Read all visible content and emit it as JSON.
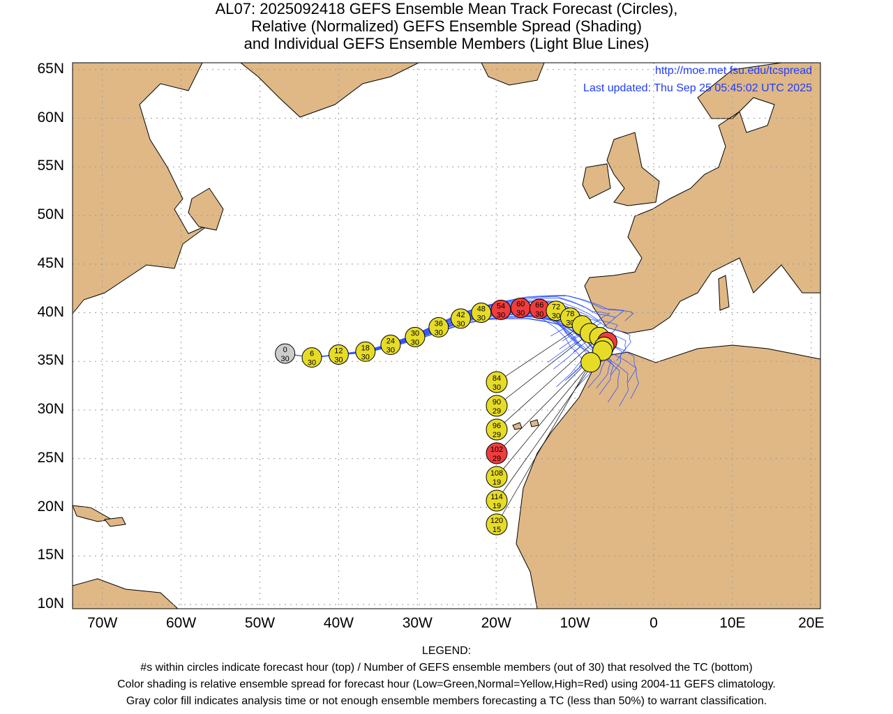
{
  "title": [
    "AL07: 2025092418 GEFS Ensemble Mean Track Forecast (Circles),",
    "Relative (Normalized) GEFS Ensemble Spread (Shading)",
    "and Individual GEFS Ensemble Members (Light Blue Lines)"
  ],
  "credit": {
    "url": "http://moe.met.fsu.edu/tcspread",
    "updated": "Last updated: Thu Sep 25 05:45:02 UTC 2025"
  },
  "axes": {
    "lat_labels": [
      "65N",
      "60N",
      "55N",
      "50N",
      "45N",
      "40N",
      "35N",
      "30N",
      "25N",
      "20N",
      "15N",
      "10N"
    ],
    "lon_labels": [
      "70W",
      "60W",
      "50W",
      "40W",
      "30W",
      "20W",
      "10W",
      "0",
      "10E",
      "20E"
    ]
  },
  "colors": {
    "land": "#dfb886",
    "gray": "#cccccc",
    "yellow": "#e6dc28",
    "red": "#f03c3c",
    "member": "#3355ff"
  },
  "track": [
    {
      "hour": "0",
      "members": "30",
      "lon": -46.8,
      "lat": 35.8,
      "spread": "gray"
    },
    {
      "hour": "6",
      "members": "30",
      "lon": -43.4,
      "lat": 35.4,
      "spread": "yellow"
    },
    {
      "hour": "12",
      "members": "30",
      "lon": -40.0,
      "lat": 35.7,
      "spread": "yellow"
    },
    {
      "hour": "18",
      "members": "30",
      "lon": -36.6,
      "lat": 36.0,
      "spread": "yellow"
    },
    {
      "hour": "24",
      "members": "30",
      "lon": -33.4,
      "lat": 36.7,
      "spread": "yellow"
    },
    {
      "hour": "30",
      "members": "30",
      "lon": -30.3,
      "lat": 37.5,
      "spread": "yellow"
    },
    {
      "hour": "36",
      "members": "30",
      "lon": -27.3,
      "lat": 38.5,
      "spread": "yellow"
    },
    {
      "hour": "42",
      "members": "30",
      "lon": -24.5,
      "lat": 39.4,
      "spread": "yellow"
    },
    {
      "hour": "48",
      "members": "30",
      "lon": -21.9,
      "lat": 40.0,
      "spread": "yellow"
    },
    {
      "hour": "54",
      "members": "30",
      "lon": -19.4,
      "lat": 40.3,
      "spread": "red"
    },
    {
      "hour": "60",
      "members": "30",
      "lon": -16.9,
      "lat": 40.5,
      "spread": "red"
    },
    {
      "hour": "66",
      "members": "30",
      "lon": -14.5,
      "lat": 40.4,
      "spread": "red"
    },
    {
      "hour": "72",
      "members": "30",
      "lon": -12.4,
      "lat": 40.2,
      "spread": "yellow"
    },
    {
      "hour": "78",
      "members": "30",
      "lon": -10.6,
      "lat": 39.5,
      "spread": "yellow"
    },
    {
      "hour": "84",
      "members": "30",
      "lon": -9.1,
      "lat": 38.7,
      "spread": "yellow"
    },
    {
      "hour": "90",
      "members": "29",
      "lon": -8.1,
      "lat": 37.9,
      "spread": "yellow"
    },
    {
      "hour": "96",
      "members": "29",
      "lon": -6.9,
      "lat": 37.5,
      "spread": "yellow"
    },
    {
      "hour": "102",
      "members": "29",
      "lon": -5.9,
      "lat": 37.0,
      "spread": "red"
    },
    {
      "hour": "108",
      "members": "19",
      "lon": -6.3,
      "lat": 36.5,
      "spread": "yellow"
    },
    {
      "hour": "114",
      "members": "19",
      "lon": -6.5,
      "lat": 36.1,
      "spread": "yellow"
    },
    {
      "hour": "120",
      "members": "15",
      "lon": -8.0,
      "lat": 34.9,
      "spread": "yellow"
    }
  ],
  "legend": [
    "LEGEND:",
    "#s within circles indicate forecast hour (top) / Number of GEFS ensemble members (out of 30) that resolved the TC (bottom)",
    "Color shading is relative ensemble spread for forecast hour (Low=Green,Normal=Yellow,High=Red) using 2004-11 GEFS climatology.",
    "Gray color fill indicates analysis time or not enough ensemble members forecasting a TC (less than 50%) to warrant classification."
  ]
}
